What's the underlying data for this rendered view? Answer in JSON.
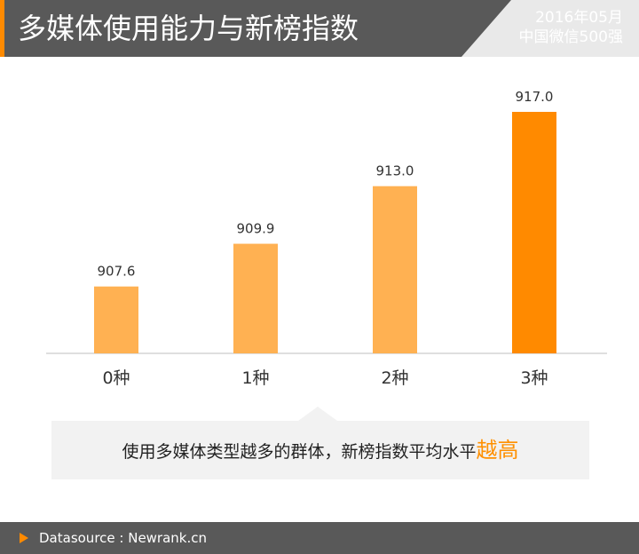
{
  "header": {
    "title": "多媒体使用能力与新榜指数",
    "date": "2016年05月",
    "subtitle": "中国微信500强"
  },
  "colors": {
    "bar": "#ffb152",
    "bar_highlight": "#ff8a00",
    "accent": "#ff9000",
    "header_bg": "#595959"
  },
  "chart_data": {
    "type": "bar",
    "categories": [
      "0种",
      "1种",
      "2种",
      "3种"
    ],
    "values": [
      907.6,
      909.9,
      913.0,
      917.0
    ],
    "value_labels": [
      "907.6",
      "909.9",
      "913.0",
      "917.0"
    ],
    "highlight_index": 3,
    "title": "",
    "xlabel": "",
    "ylabel": "",
    "ylim": [
      904.0,
      917.0
    ],
    "grid": false,
    "legend": "none"
  },
  "note": {
    "text": "使用多媒体类型越多的群体，新榜指数平均水平",
    "emphasis": "越高"
  },
  "footer": {
    "source": "Datasource : Newrank.cn"
  }
}
